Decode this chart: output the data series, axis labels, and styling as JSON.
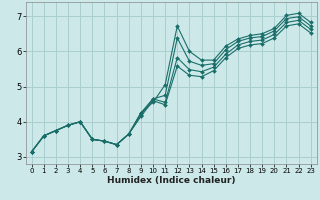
{
  "xlabel": "Humidex (Indice chaleur)",
  "ylabel": "",
  "bg_color": "#cce8e8",
  "grid_color": "#aacfcf",
  "line_color": "#1a6e6a",
  "xlim": [
    -0.5,
    23.5
  ],
  "ylim": [
    2.8,
    7.4
  ],
  "xticks": [
    0,
    1,
    2,
    3,
    4,
    5,
    6,
    7,
    8,
    9,
    10,
    11,
    12,
    13,
    14,
    15,
    16,
    17,
    18,
    19,
    20,
    21,
    22,
    23
  ],
  "yticks": [
    3,
    4,
    5,
    6,
    7
  ],
  "lines": [
    {
      "x": [
        0,
        1,
        2,
        3,
        4,
        5,
        6,
        7,
        8,
        9,
        10,
        11,
        12,
        13,
        14,
        15,
        16,
        17,
        18,
        19,
        20,
        21,
        22,
        23
      ],
      "y": [
        3.15,
        3.6,
        3.75,
        3.9,
        4.0,
        3.5,
        3.45,
        3.35,
        3.65,
        4.25,
        4.55,
        5.05,
        6.72,
        6.0,
        5.75,
        5.75,
        6.15,
        6.35,
        6.45,
        6.5,
        6.65,
        7.02,
        7.08,
        6.82
      ]
    },
    {
      "x": [
        0,
        1,
        2,
        3,
        4,
        5,
        6,
        7,
        8,
        9,
        10,
        11,
        12,
        13,
        14,
        15,
        16,
        17,
        18,
        19,
        20,
        21,
        22,
        23
      ],
      "y": [
        3.15,
        3.6,
        3.75,
        3.9,
        4.0,
        3.5,
        3.45,
        3.35,
        3.65,
        4.25,
        4.65,
        4.75,
        6.38,
        5.72,
        5.6,
        5.65,
        6.05,
        6.28,
        6.38,
        6.42,
        6.58,
        6.93,
        6.98,
        6.72
      ]
    },
    {
      "x": [
        0,
        1,
        2,
        3,
        4,
        5,
        6,
        7,
        8,
        9,
        10,
        11,
        12,
        13,
        14,
        15,
        16,
        17,
        18,
        19,
        20,
        21,
        22,
        23
      ],
      "y": [
        3.15,
        3.6,
        3.75,
        3.9,
        4.0,
        3.5,
        3.45,
        3.35,
        3.65,
        4.2,
        4.65,
        4.55,
        5.82,
        5.48,
        5.42,
        5.55,
        5.92,
        6.18,
        6.28,
        6.32,
        6.48,
        6.82,
        6.88,
        6.62
      ]
    },
    {
      "x": [
        0,
        1,
        2,
        3,
        4,
        5,
        6,
        7,
        8,
        9,
        10,
        11,
        12,
        13,
        14,
        15,
        16,
        17,
        18,
        19,
        20,
        21,
        22,
        23
      ],
      "y": [
        3.15,
        3.6,
        3.75,
        3.9,
        4.0,
        3.5,
        3.45,
        3.35,
        3.65,
        4.15,
        4.6,
        4.48,
        5.58,
        5.32,
        5.28,
        5.45,
        5.82,
        6.08,
        6.18,
        6.22,
        6.38,
        6.72,
        6.78,
        6.52
      ]
    }
  ]
}
